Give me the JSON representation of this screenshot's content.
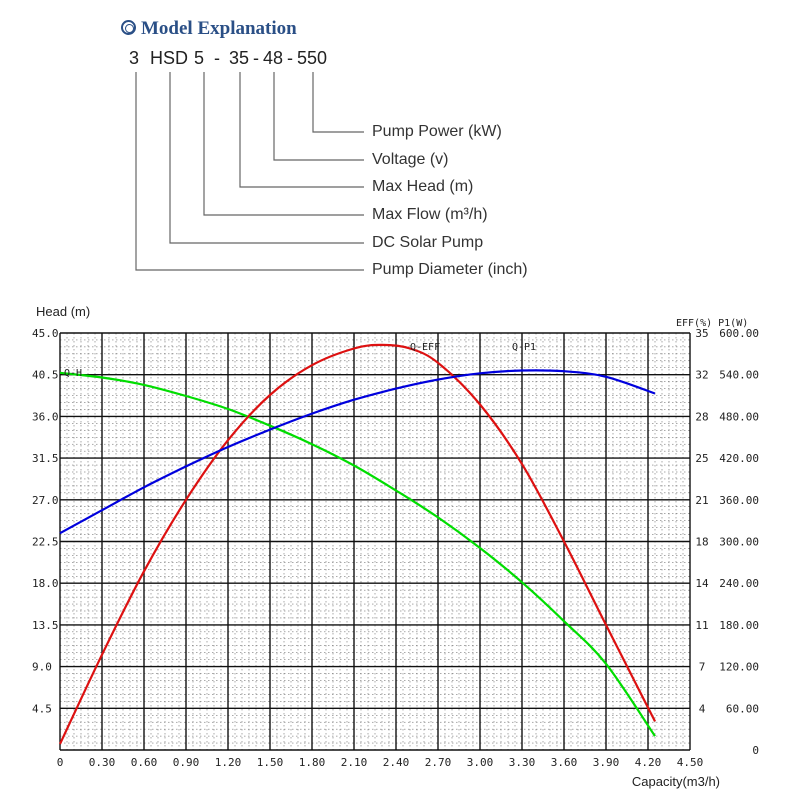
{
  "model_explanation": {
    "title": "Model Explanation",
    "code_parts": [
      "3",
      "HSD",
      "5",
      "-",
      "35",
      "-",
      "48",
      "-",
      "550"
    ],
    "labels": [
      "Pump Power (kW)",
      "Voltage (v)",
      "Max Head (m)",
      "Max Flow (m³/h)",
      "DC Solar Pump",
      "Pump Diameter (inch)"
    ]
  },
  "chart_data": {
    "type": "line",
    "ylabel_left": "Head (m)",
    "ylabel_right": "EFF(%) P1(W)",
    "xlabel": "Capacity(m3/h)",
    "x_ticks": [
      "0",
      "0.30",
      "0.60",
      "0.90",
      "1.20",
      "1.50",
      "1.80",
      "2.10",
      "2.40",
      "2.70",
      "3.00",
      "3.30",
      "3.60",
      "3.90",
      "4.20",
      "4.50"
    ],
    "y_ticks_head": [
      "4.5",
      "9.0",
      "13.5",
      "18.0",
      "22.5",
      "27.0",
      "31.5",
      "36.0",
      "40.5",
      "45.0"
    ],
    "y_ticks_eff": [
      "4",
      "7",
      "11",
      "14",
      "18",
      "21",
      "25",
      "28",
      "32",
      "35"
    ],
    "y_ticks_power": [
      "0",
      "60.00",
      "120.00",
      "180.00",
      "240.00",
      "300.00",
      "360.00",
      "420.00",
      "480.00",
      "540.00",
      "600.00"
    ],
    "xlim": [
      0,
      4.5
    ],
    "ylim_head": [
      0,
      45
    ],
    "ylim_eff": [
      0,
      35
    ],
    "ylim_power": [
      0,
      600
    ],
    "series": [
      {
        "name": "Q-H",
        "axis": "head",
        "color": "#00dd00",
        "x": [
          0,
          0.3,
          0.6,
          0.9,
          1.2,
          1.5,
          1.8,
          2.1,
          2.4,
          2.7,
          3.0,
          3.3,
          3.6,
          3.9,
          4.25
        ],
        "y": [
          40.7,
          40.2,
          39.4,
          38.2,
          36.8,
          35.0,
          33.0,
          30.7,
          28.0,
          25.1,
          21.8,
          18.1,
          13.9,
          9.3,
          1.5
        ]
      },
      {
        "name": "Q-EFF",
        "axis": "eff",
        "color": "#dd1111",
        "x": [
          0,
          0.3,
          0.6,
          0.9,
          1.2,
          1.5,
          1.8,
          2.1,
          2.3,
          2.5,
          2.7,
          3.0,
          3.3,
          3.6,
          3.9,
          4.25
        ],
        "y": [
          0.5,
          8.0,
          15.0,
          21.0,
          26.0,
          29.8,
          32.3,
          33.7,
          34.0,
          33.7,
          32.5,
          29.0,
          24.0,
          17.5,
          10.5,
          2.4
        ]
      },
      {
        "name": "Q-P1",
        "axis": "power",
        "color": "#0000dd",
        "x": [
          0,
          0.3,
          0.6,
          0.9,
          1.2,
          1.5,
          1.8,
          2.1,
          2.4,
          2.7,
          3.0,
          3.3,
          3.6,
          3.9,
          4.25
        ],
        "y": [
          312,
          345,
          378,
          408,
          436,
          461,
          484,
          504,
          520,
          533,
          542,
          546,
          545,
          537,
          513
        ]
      }
    ]
  }
}
